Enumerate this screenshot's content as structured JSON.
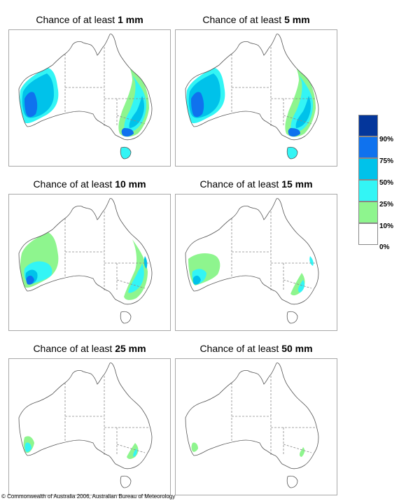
{
  "title_prefix": "Chance of at least",
  "colors": {
    "p10": "#8ef58e",
    "p25": "#33f5f5",
    "p50": "#00c2ea",
    "p75": "#0f72ee",
    "p90": "#04369b",
    "state_border": "#8a8a8a",
    "coast": "#555555"
  },
  "panels": [
    {
      "amount": "1 mm",
      "fill_level": "high"
    },
    {
      "amount": "5 mm",
      "fill_level": "high"
    },
    {
      "amount": "10 mm",
      "fill_level": "medium"
    },
    {
      "amount": "15 mm",
      "fill_level": "medium"
    },
    {
      "amount": "25 mm",
      "fill_level": "low"
    },
    {
      "amount": "50 mm",
      "fill_level": "lowest"
    }
  ],
  "legend": {
    "labels": [
      "90%",
      "75%",
      "50%",
      "25%",
      "10%",
      "0%"
    ]
  },
  "footer": "© Commonwealth of Australia 2006, Australian Bureau of Meteorology"
}
